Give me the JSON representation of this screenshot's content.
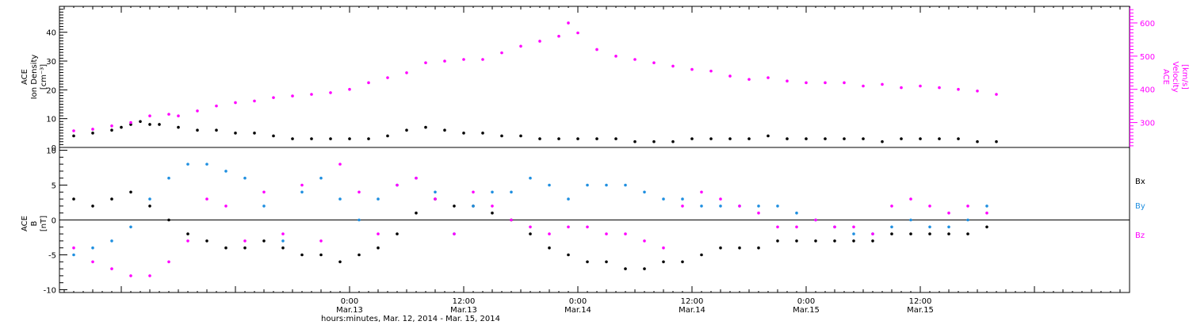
{
  "chart_data": [
    {
      "type": "scatter",
      "panel": "top",
      "ylabel_left": [
        "ACE",
        "Ion Density",
        "[cm⁻³]"
      ],
      "ylabel_right": [
        "ACE",
        "Velocity",
        "[km/s]"
      ],
      "ylim_left": [
        0,
        49
      ],
      "ylim_right": [
        225,
        650
      ],
      "yticks_left": [
        "0",
        "10",
        "20",
        "30",
        "40"
      ],
      "yticks_right": [
        "300",
        "400",
        "500",
        "600"
      ],
      "grid": false,
      "series": [
        {
          "name": "",
          "axis": "left",
          "color": "#000000",
          "points": [
            [
              -5,
              4
            ],
            [
              -3,
              5
            ],
            [
              -1,
              6
            ],
            [
              0,
              7
            ],
            [
              1,
              8
            ],
            [
              2,
              9
            ],
            [
              3,
              8
            ],
            [
              4,
              8
            ],
            [
              6,
              7
            ],
            [
              8,
              6
            ],
            [
              10,
              6
            ],
            [
              12,
              5
            ],
            [
              14,
              5
            ],
            [
              16,
              4
            ],
            [
              18,
              3
            ],
            [
              20,
              3
            ],
            [
              22,
              3
            ],
            [
              24,
              3
            ],
            [
              26,
              3
            ],
            [
              28,
              4
            ],
            [
              30,
              6
            ],
            [
              32,
              7
            ],
            [
              34,
              6
            ],
            [
              36,
              5
            ],
            [
              38,
              5
            ],
            [
              40,
              4
            ],
            [
              42,
              4
            ],
            [
              44,
              3
            ],
            [
              46,
              3
            ],
            [
              48,
              3
            ],
            [
              50,
              3
            ],
            [
              52,
              3
            ],
            [
              54,
              2
            ],
            [
              56,
              2
            ],
            [
              58,
              2
            ],
            [
              60,
              3
            ],
            [
              62,
              3
            ],
            [
              64,
              3
            ],
            [
              66,
              3
            ],
            [
              68,
              4
            ],
            [
              70,
              3
            ],
            [
              72,
              3
            ],
            [
              74,
              3
            ],
            [
              76,
              3
            ],
            [
              78,
              3
            ],
            [
              80,
              2
            ],
            [
              82,
              3
            ],
            [
              84,
              3
            ],
            [
              86,
              3
            ],
            [
              88,
              3
            ],
            [
              90,
              2
            ],
            [
              92,
              2
            ]
          ]
        },
        {
          "name": "",
          "axis": "right",
          "color": "#ff00ff",
          "points": [
            [
              -5,
              275
            ],
            [
              -3,
              280
            ],
            [
              -1,
              290
            ],
            [
              1,
              300
            ],
            [
              3,
              320
            ],
            [
              5,
              325
            ],
            [
              6,
              320
            ],
            [
              8,
              335
            ],
            [
              10,
              350
            ],
            [
              12,
              360
            ],
            [
              14,
              365
            ],
            [
              16,
              375
            ],
            [
              18,
              380
            ],
            [
              20,
              385
            ],
            [
              22,
              390
            ],
            [
              24,
              400
            ],
            [
              26,
              420
            ],
            [
              28,
              435
            ],
            [
              30,
              450
            ],
            [
              32,
              480
            ],
            [
              34,
              485
            ],
            [
              36,
              490
            ],
            [
              38,
              490
            ],
            [
              40,
              510
            ],
            [
              42,
              530
            ],
            [
              44,
              545
            ],
            [
              46,
              560
            ],
            [
              47,
              600
            ],
            [
              48,
              570
            ],
            [
              50,
              520
            ],
            [
              52,
              500
            ],
            [
              54,
              490
            ],
            [
              56,
              480
            ],
            [
              58,
              470
            ],
            [
              60,
              460
            ],
            [
              62,
              455
            ],
            [
              64,
              440
            ],
            [
              66,
              430
            ],
            [
              68,
              435
            ],
            [
              70,
              425
            ],
            [
              72,
              420
            ],
            [
              74,
              420
            ],
            [
              76,
              420
            ],
            [
              78,
              410
            ],
            [
              80,
              415
            ],
            [
              82,
              405
            ],
            [
              84,
              410
            ],
            [
              86,
              405
            ],
            [
              88,
              400
            ],
            [
              90,
              395
            ],
            [
              92,
              385
            ]
          ]
        }
      ]
    },
    {
      "type": "scatter",
      "panel": "bottom",
      "ylabel": [
        "ACE",
        "B",
        "[nT]"
      ],
      "ylim": [
        -10.4,
        10.4
      ],
      "yticks": [
        "-10",
        "-5",
        "0",
        "5",
        "10"
      ],
      "xtick_labels": [
        [
          "0:00",
          "Mar.13"
        ],
        [
          "12:00",
          "Mar.13"
        ],
        [
          "0:00",
          "Mar.14"
        ],
        [
          "12:00",
          "Mar.14"
        ],
        [
          "0:00",
          "Mar.15"
        ],
        [
          "12:00",
          "Mar.15"
        ]
      ],
      "xtick_hours": [
        24,
        36,
        48,
        60,
        72,
        84
      ],
      "xlim_hours": [
        -6.5,
        106
      ],
      "xlabel": "hours:minutes, Mar. 12, 2014 - Mar. 15, 2014",
      "zero_line": true,
      "grid": false,
      "legend": {
        "placement": "right",
        "labels": [
          "Bx",
          "By",
          "Bz"
        ]
      },
      "series": [
        {
          "name": "Bx",
          "color": "#000000",
          "points": [
            [
              -5,
              3
            ],
            [
              -3,
              2
            ],
            [
              -1,
              3
            ],
            [
              1,
              4
            ],
            [
              3,
              2
            ],
            [
              5,
              0
            ],
            [
              7,
              -2
            ],
            [
              9,
              -3
            ],
            [
              11,
              -4
            ],
            [
              13,
              -4
            ],
            [
              15,
              -3
            ],
            [
              17,
              -4
            ],
            [
              19,
              -5
            ],
            [
              21,
              -5
            ],
            [
              23,
              -6
            ],
            [
              25,
              -5
            ],
            [
              27,
              -4
            ],
            [
              29,
              -2
            ],
            [
              31,
              1
            ],
            [
              33,
              3
            ],
            [
              35,
              2
            ],
            [
              37,
              2
            ],
            [
              39,
              1
            ],
            [
              41,
              0
            ],
            [
              43,
              -2
            ],
            [
              45,
              -4
            ],
            [
              47,
              -5
            ],
            [
              49,
              -6
            ],
            [
              51,
              -6
            ],
            [
              53,
              -7
            ],
            [
              55,
              -7
            ],
            [
              57,
              -6
            ],
            [
              59,
              -6
            ],
            [
              61,
              -5
            ],
            [
              63,
              -4
            ],
            [
              65,
              -4
            ],
            [
              67,
              -4
            ],
            [
              69,
              -3
            ],
            [
              71,
              -3
            ],
            [
              73,
              -3
            ],
            [
              75,
              -3
            ],
            [
              77,
              -3
            ],
            [
              79,
              -3
            ],
            [
              81,
              -2
            ],
            [
              83,
              -2
            ],
            [
              85,
              -2
            ],
            [
              87,
              -2
            ],
            [
              89,
              -2
            ],
            [
              91,
              -1
            ]
          ]
        },
        {
          "name": "By",
          "color": "#1f8fe0",
          "points": [
            [
              -5,
              -5
            ],
            [
              -3,
              -4
            ],
            [
              -1,
              -3
            ],
            [
              1,
              -1
            ],
            [
              3,
              3
            ],
            [
              5,
              6
            ],
            [
              7,
              8
            ],
            [
              9,
              8
            ],
            [
              11,
              7
            ],
            [
              13,
              6
            ],
            [
              15,
              2
            ],
            [
              17,
              -3
            ],
            [
              19,
              4
            ],
            [
              21,
              6
            ],
            [
              23,
              3
            ],
            [
              25,
              0
            ],
            [
              27,
              3
            ],
            [
              29,
              5
            ],
            [
              31,
              6
            ],
            [
              33,
              4
            ],
            [
              35,
              -2
            ],
            [
              37,
              2
            ],
            [
              39,
              4
            ],
            [
              41,
              4
            ],
            [
              43,
              6
            ],
            [
              45,
              5
            ],
            [
              47,
              3
            ],
            [
              49,
              5
            ],
            [
              51,
              5
            ],
            [
              53,
              5
            ],
            [
              55,
              4
            ],
            [
              57,
              3
            ],
            [
              59,
              3
            ],
            [
              61,
              2
            ],
            [
              63,
              2
            ],
            [
              65,
              2
            ],
            [
              67,
              2
            ],
            [
              69,
              2
            ],
            [
              71,
              1
            ],
            [
              73,
              0
            ],
            [
              75,
              -1
            ],
            [
              77,
              -2
            ],
            [
              79,
              -2
            ],
            [
              81,
              -1
            ],
            [
              83,
              0
            ],
            [
              85,
              -1
            ],
            [
              87,
              -1
            ],
            [
              89,
              0
            ],
            [
              91,
              2
            ]
          ]
        },
        {
          "name": "Bz",
          "color": "#ff00ff",
          "points": [
            [
              -5,
              -4
            ],
            [
              -3,
              -6
            ],
            [
              -1,
              -7
            ],
            [
              1,
              -8
            ],
            [
              3,
              -8
            ],
            [
              5,
              -6
            ],
            [
              7,
              -3
            ],
            [
              9,
              3
            ],
            [
              11,
              2
            ],
            [
              13,
              -3
            ],
            [
              15,
              4
            ],
            [
              17,
              -2
            ],
            [
              19,
              5
            ],
            [
              21,
              -3
            ],
            [
              23,
              8
            ],
            [
              25,
              4
            ],
            [
              27,
              -2
            ],
            [
              29,
              5
            ],
            [
              31,
              6
            ],
            [
              33,
              3
            ],
            [
              35,
              -2
            ],
            [
              37,
              4
            ],
            [
              39,
              2
            ],
            [
              41,
              0
            ],
            [
              43,
              -1
            ],
            [
              45,
              -2
            ],
            [
              47,
              -1
            ],
            [
              49,
              -1
            ],
            [
              51,
              -2
            ],
            [
              53,
              -2
            ],
            [
              55,
              -3
            ],
            [
              57,
              -4
            ],
            [
              59,
              2
            ],
            [
              61,
              4
            ],
            [
              63,
              3
            ],
            [
              65,
              2
            ],
            [
              67,
              1
            ],
            [
              69,
              -1
            ],
            [
              71,
              -1
            ],
            [
              73,
              0
            ],
            [
              75,
              -1
            ],
            [
              77,
              -1
            ],
            [
              79,
              -2
            ],
            [
              81,
              2
            ],
            [
              83,
              3
            ],
            [
              85,
              2
            ],
            [
              87,
              1
            ],
            [
              89,
              2
            ],
            [
              91,
              1
            ]
          ]
        }
      ]
    }
  ]
}
